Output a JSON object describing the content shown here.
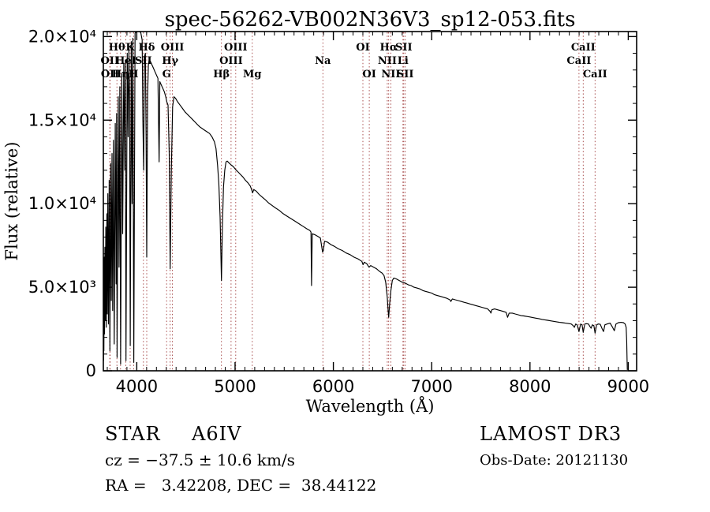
{
  "title": "spec-56262-VB002N36V3_sp12-053.fits",
  "annotations": {
    "class_label": "STAR",
    "subclass": "A6IV",
    "survey": "LAMOST DR3",
    "cz": "cz = −37.5 ± 10.6 km/s",
    "obs_date": "Obs-Date: 20121130",
    "ra_dec": "RA =   3.42208, DEC =  38.44122"
  },
  "chart_data": {
    "type": "line",
    "title": "spec-56262-VB002N36V3_sp12-053.fits",
    "xlabel": "Wavelength (Å)",
    "ylabel": "Flux (relative)",
    "xlim": [
      3660,
      9085
    ],
    "ylim": [
      0,
      20300
    ],
    "grid": false,
    "frame_color": "#000000",
    "line_marker_color": "#a03c3c",
    "x_ticks": {
      "values": [
        4000,
        5000,
        6000,
        7000,
        8000,
        9000
      ],
      "labels": [
        "4000",
        "5000",
        "6000",
        "7000",
        "8000",
        "9000"
      ],
      "minor_step": 100
    },
    "y_ticks": {
      "values": [
        0,
        5000,
        10000,
        15000,
        20000
      ],
      "labels": [
        "0",
        "5.0×10³",
        "1.0×10⁴",
        "1.5×10⁴",
        "2.0×10⁴"
      ],
      "minor_step": 1000
    },
    "spectral_lines": [
      {
        "wavelength": 3726,
        "label": "OII",
        "row": 2
      },
      {
        "wavelength": 3729,
        "label": "OII",
        "row": 3
      },
      {
        "wavelength": 3798,
        "label": "Hθ",
        "row": 1
      },
      {
        "wavelength": 3835,
        "label": "Hη",
        "row": 3
      },
      {
        "wavelength": 3889,
        "label": "HeI",
        "row": 2
      },
      {
        "wavelength": 3933,
        "label": "K",
        "row": 1
      },
      {
        "wavelength": 3968,
        "label": "H",
        "row": 3
      },
      {
        "wavelength": 4068,
        "label": "SII",
        "row": 2
      },
      {
        "wavelength": 4101,
        "label": "Hδ",
        "row": 1
      },
      {
        "wavelength": 4304,
        "label": "G",
        "row": 3
      },
      {
        "wavelength": 4340,
        "label": "Hγ",
        "row": 2
      },
      {
        "wavelength": 4363,
        "label": "OIII",
        "row": 1
      },
      {
        "wavelength": 4861,
        "label": "Hβ",
        "row": 3
      },
      {
        "wavelength": 4959,
        "label": "OIII",
        "row": 2
      },
      {
        "wavelength": 5007,
        "label": "OIII",
        "row": 1
      },
      {
        "wavelength": 5175,
        "label": "Mg",
        "row": 3
      },
      {
        "wavelength": 5893,
        "label": "Na",
        "row": 2
      },
      {
        "wavelength": 6300,
        "label": "OI",
        "row": 1
      },
      {
        "wavelength": 6365,
        "label": "OI",
        "row": 3
      },
      {
        "wavelength": 6548,
        "label": "NII",
        "row": 2
      },
      {
        "wavelength": 6563,
        "label": "Hα",
        "row": 1
      },
      {
        "wavelength": 6584,
        "label": "NII",
        "row": 3
      },
      {
        "wavelength": 6708,
        "label": "Li",
        "row": 2
      },
      {
        "wavelength": 6716,
        "label": "SII",
        "row": 1
      },
      {
        "wavelength": 6731,
        "label": "SII",
        "row": 3
      },
      {
        "wavelength": 8498,
        "label": "CaII",
        "row": 2
      },
      {
        "wavelength": 8542,
        "label": "CaII",
        "row": 1
      },
      {
        "wavelength": 8662,
        "label": "CaII",
        "row": 3
      }
    ],
    "series": [
      {
        "name": "spectrum",
        "color": "#000000",
        "points": [
          [
            3662,
            600
          ],
          [
            3664,
            5200
          ],
          [
            3666,
            1200
          ],
          [
            3669,
            6800
          ],
          [
            3672,
            2200
          ],
          [
            3676,
            7400
          ],
          [
            3680,
            3000
          ],
          [
            3685,
            8600
          ],
          [
            3690,
            2600
          ],
          [
            3696,
            9400
          ],
          [
            3700,
            3400
          ],
          [
            3706,
            10600
          ],
          [
            3712,
            2800
          ],
          [
            3719,
            11400
          ],
          [
            3727,
            1200
          ],
          [
            3735,
            12400
          ],
          [
            3741,
            4200
          ],
          [
            3748,
            13000
          ],
          [
            3755,
            3600
          ],
          [
            3763,
            13800
          ],
          [
            3771,
            1600
          ],
          [
            3781,
            14800
          ],
          [
            3790,
            5200
          ],
          [
            3795,
            15400
          ],
          [
            3800,
            800
          ],
          [
            3812,
            16400
          ],
          [
            3820,
            6200
          ],
          [
            3828,
            17000
          ],
          [
            3836,
            400
          ],
          [
            3848,
            17800
          ],
          [
            3857,
            8200
          ],
          [
            3868,
            18400
          ],
          [
            3878,
            12000
          ],
          [
            3883,
            18600
          ],
          [
            3890,
            600
          ],
          [
            3903,
            19000
          ],
          [
            3912,
            14000
          ],
          [
            3920,
            19300
          ],
          [
            3927,
            16000
          ],
          [
            3934,
            1500
          ],
          [
            3944,
            19700
          ],
          [
            3952,
            10000
          ],
          [
            3960,
            19900
          ],
          [
            3970,
            500
          ],
          [
            3983,
            20200
          ],
          [
            3995,
            20300
          ],
          [
            4010,
            20300
          ],
          [
            4025,
            20300
          ],
          [
            4040,
            20250
          ],
          [
            4055,
            19800
          ],
          [
            4062,
            15000
          ],
          [
            4070,
            12000
          ],
          [
            4078,
            18800
          ],
          [
            4088,
            19000
          ],
          [
            4095,
            14000
          ],
          [
            4101,
            6800
          ],
          [
            4110,
            16500
          ],
          [
            4118,
            18300
          ],
          [
            4126,
            18600
          ],
          [
            4140,
            18500
          ],
          [
            4155,
            18300
          ],
          [
            4170,
            18100
          ],
          [
            4185,
            17900
          ],
          [
            4200,
            17700
          ],
          [
            4215,
            17500
          ],
          [
            4227,
            12500
          ],
          [
            4235,
            17300
          ],
          [
            4250,
            17100
          ],
          [
            4265,
            16900
          ],
          [
            4280,
            16700
          ],
          [
            4295,
            16400
          ],
          [
            4305,
            16100
          ],
          [
            4318,
            15900
          ],
          [
            4330,
            13000
          ],
          [
            4340,
            6100
          ],
          [
            4352,
            12000
          ],
          [
            4365,
            15800
          ],
          [
            4378,
            16400
          ],
          [
            4395,
            16300
          ],
          [
            4415,
            16100
          ],
          [
            4440,
            15900
          ],
          [
            4465,
            15700
          ],
          [
            4490,
            15500
          ],
          [
            4515,
            15350
          ],
          [
            4540,
            15200
          ],
          [
            4565,
            15050
          ],
          [
            4590,
            14900
          ],
          [
            4615,
            14750
          ],
          [
            4640,
            14600
          ],
          [
            4665,
            14500
          ],
          [
            4690,
            14400
          ],
          [
            4715,
            14300
          ],
          [
            4740,
            14200
          ],
          [
            4765,
            14000
          ],
          [
            4790,
            13700
          ],
          [
            4806,
            13300
          ],
          [
            4822,
            12300
          ],
          [
            4835,
            11200
          ],
          [
            4848,
            9200
          ],
          [
            4861,
            5400
          ],
          [
            4872,
            8800
          ],
          [
            4882,
            11000
          ],
          [
            4895,
            12000
          ],
          [
            4908,
            12500
          ],
          [
            4920,
            12550
          ],
          [
            4945,
            12400
          ],
          [
            4965,
            12300
          ],
          [
            4985,
            12200
          ],
          [
            5005,
            12050
          ],
          [
            5030,
            11900
          ],
          [
            5055,
            11750
          ],
          [
            5080,
            11600
          ],
          [
            5105,
            11400
          ],
          [
            5130,
            11250
          ],
          [
            5155,
            11050
          ],
          [
            5168,
            10850
          ],
          [
            5178,
            10650
          ],
          [
            5190,
            10850
          ],
          [
            5215,
            10750
          ],
          [
            5245,
            10550
          ],
          [
            5275,
            10400
          ],
          [
            5305,
            10250
          ],
          [
            5340,
            10050
          ],
          [
            5375,
            9900
          ],
          [
            5410,
            9750
          ],
          [
            5450,
            9600
          ],
          [
            5490,
            9400
          ],
          [
            5530,
            9250
          ],
          [
            5570,
            9100
          ],
          [
            5610,
            8950
          ],
          [
            5650,
            8800
          ],
          [
            5690,
            8650
          ],
          [
            5730,
            8500
          ],
          [
            5760,
            8400
          ],
          [
            5772,
            8300
          ],
          [
            5778,
            5100
          ],
          [
            5785,
            8200
          ],
          [
            5810,
            8150
          ],
          [
            5840,
            8050
          ],
          [
            5868,
            7950
          ],
          [
            5890,
            7100
          ],
          [
            5898,
            7200
          ],
          [
            5910,
            7750
          ],
          [
            5940,
            7700
          ],
          [
            5975,
            7550
          ],
          [
            6010,
            7450
          ],
          [
            6050,
            7300
          ],
          [
            6090,
            7200
          ],
          [
            6130,
            7050
          ],
          [
            6170,
            6950
          ],
          [
            6210,
            6800
          ],
          [
            6250,
            6700
          ],
          [
            6290,
            6550
          ],
          [
            6302,
            6350
          ],
          [
            6315,
            6500
          ],
          [
            6340,
            6400
          ],
          [
            6363,
            6200
          ],
          [
            6380,
            6300
          ],
          [
            6410,
            6200
          ],
          [
            6440,
            6100
          ],
          [
            6470,
            5950
          ],
          [
            6495,
            5850
          ],
          [
            6515,
            5700
          ],
          [
            6532,
            5300
          ],
          [
            6548,
            4400
          ],
          [
            6557,
            3600
          ],
          [
            6563,
            3200
          ],
          [
            6572,
            4000
          ],
          [
            6585,
            4800
          ],
          [
            6600,
            5400
          ],
          [
            6615,
            5550
          ],
          [
            6640,
            5500
          ],
          [
            6670,
            5400
          ],
          [
            6700,
            5300
          ],
          [
            6730,
            5250
          ],
          [
            6760,
            5150
          ],
          [
            6790,
            5100
          ],
          [
            6820,
            5000
          ],
          [
            6850,
            4950
          ],
          [
            6880,
            4900
          ],
          [
            6910,
            4800
          ],
          [
            6940,
            4750
          ],
          [
            6970,
            4700
          ],
          [
            7000,
            4650
          ],
          [
            7030,
            4550
          ],
          [
            7060,
            4500
          ],
          [
            7090,
            4450
          ],
          [
            7120,
            4400
          ],
          [
            7150,
            4350
          ],
          [
            7185,
            4250
          ],
          [
            7195,
            4150
          ],
          [
            7210,
            4300
          ],
          [
            7240,
            4250
          ],
          [
            7270,
            4200
          ],
          [
            7300,
            4150
          ],
          [
            7330,
            4100
          ],
          [
            7360,
            4050
          ],
          [
            7390,
            4000
          ],
          [
            7420,
            3950
          ],
          [
            7450,
            3900
          ],
          [
            7480,
            3850
          ],
          [
            7510,
            3800
          ],
          [
            7540,
            3750
          ],
          [
            7570,
            3700
          ],
          [
            7595,
            3550
          ],
          [
            7603,
            3450
          ],
          [
            7612,
            3650
          ],
          [
            7640,
            3700
          ],
          [
            7670,
            3650
          ],
          [
            7700,
            3600
          ],
          [
            7730,
            3550
          ],
          [
            7758,
            3500
          ],
          [
            7772,
            3200
          ],
          [
            7788,
            3450
          ],
          [
            7820,
            3450
          ],
          [
            7850,
            3400
          ],
          [
            7880,
            3350
          ],
          [
            7910,
            3300
          ],
          [
            7940,
            3280
          ],
          [
            7970,
            3250
          ],
          [
            8000,
            3220
          ],
          [
            8030,
            3180
          ],
          [
            8060,
            3150
          ],
          [
            8090,
            3120
          ],
          [
            8120,
            3080
          ],
          [
            8150,
            3050
          ],
          [
            8180,
            3020
          ],
          [
            8210,
            2990
          ],
          [
            8240,
            2960
          ],
          [
            8270,
            2930
          ],
          [
            8300,
            2900
          ],
          [
            8330,
            2880
          ],
          [
            8360,
            2850
          ],
          [
            8390,
            2830
          ],
          [
            8420,
            2800
          ],
          [
            8440,
            2700
          ],
          [
            8452,
            2600
          ],
          [
            8465,
            2800
          ],
          [
            8480,
            2750
          ],
          [
            8498,
            2350
          ],
          [
            8515,
            2800
          ],
          [
            8530,
            2750
          ],
          [
            8542,
            2300
          ],
          [
            8558,
            2800
          ],
          [
            8575,
            2820
          ],
          [
            8595,
            2800
          ],
          [
            8610,
            2650
          ],
          [
            8622,
            2550
          ],
          [
            8635,
            2750
          ],
          [
            8650,
            2700
          ],
          [
            8662,
            2250
          ],
          [
            8678,
            2750
          ],
          [
            8695,
            2800
          ],
          [
            8715,
            2780
          ],
          [
            8735,
            2500
          ],
          [
            8748,
            2350
          ],
          [
            8762,
            2750
          ],
          [
            8785,
            2800
          ],
          [
            8815,
            2850
          ],
          [
            8840,
            2600
          ],
          [
            8858,
            2400
          ],
          [
            8875,
            2800
          ],
          [
            8900,
            2880
          ],
          [
            8925,
            2900
          ],
          [
            8950,
            2880
          ],
          [
            8968,
            2800
          ],
          [
            8978,
            2600
          ],
          [
            8984,
            1800
          ],
          [
            8988,
            600
          ],
          [
            8990,
            50
          ]
        ]
      }
    ]
  }
}
